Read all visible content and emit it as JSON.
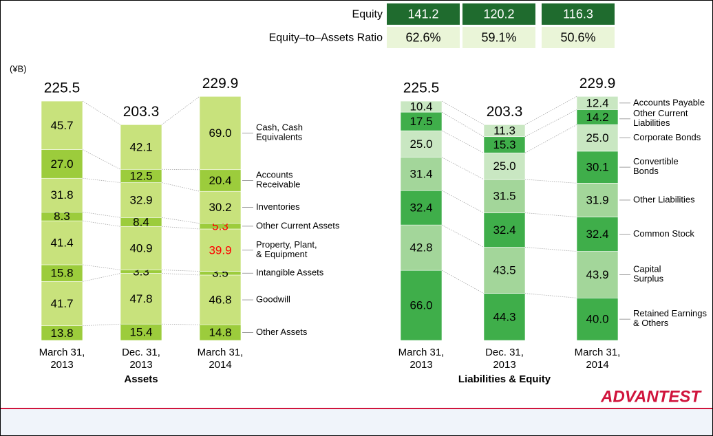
{
  "unit": "(¥B)",
  "logo": "ADVANTEST",
  "table": {
    "rows": [
      {
        "label": "Equity",
        "cells": [
          "141.2",
          "120.2",
          "116.3"
        ]
      },
      {
        "label": "Equity–to–Assets Ratio",
        "cells": [
          "62.6%",
          "59.1%",
          "50.6%"
        ]
      }
    ]
  },
  "chart_data": [
    {
      "type": "bar",
      "stacked": true,
      "title": "Assets",
      "categories": [
        "March 31,\n2013",
        "Dec. 31,\n2013",
        "March 31,\n2014"
      ],
      "totals": [
        225.5,
        203.3,
        229.9
      ],
      "series": [
        {
          "name": "Cash, Cash\nEquivalents",
          "color": "#c8e27c",
          "values": [
            45.7,
            42.1,
            69.0
          ],
          "value_labels": [
            "45.7",
            "42.1",
            "69.0"
          ]
        },
        {
          "name": "Accounts\nReceivable",
          "color": "#9ccc3c",
          "values": [
            27.0,
            12.5,
            20.4
          ],
          "value_labels": [
            "27.0",
            "12.5",
            "20.4"
          ]
        },
        {
          "name": "Inventories",
          "color": "#c8e27c",
          "values": [
            31.8,
            32.9,
            30.2
          ],
          "value_labels": [
            "31.8",
            "32.9",
            "30.2"
          ]
        },
        {
          "name": "Other Current Assets",
          "color": "#9ccc3c",
          "values": [
            8.3,
            8.4,
            5.3
          ],
          "value_labels": [
            "8.3",
            "8.4",
            "5.3"
          ],
          "value_label_colors": [
            "#000000",
            "#000000",
            "#ff0000"
          ]
        },
        {
          "name": "Property, Plant,\n& Equipment",
          "color": "#c8e27c",
          "values": [
            41.4,
            40.9,
            39.9
          ],
          "value_labels": [
            "41.4",
            "40.9",
            "39.9"
          ],
          "value_label_colors": [
            "#000000",
            "#000000",
            "#ff0000"
          ]
        },
        {
          "name": "Intangible Assets",
          "color": "#9ccc3c",
          "values": [
            15.8,
            3.3,
            3.5
          ],
          "value_labels": [
            "15.8",
            "3.3",
            "3.5"
          ]
        },
        {
          "name": "Goodwill",
          "color": "#c8e27c",
          "values": [
            41.7,
            47.8,
            46.8
          ],
          "value_labels": [
            "41.7",
            "47.8",
            "46.8"
          ]
        },
        {
          "name": "Other Assets",
          "color": "#9ccc3c",
          "values": [
            13.8,
            15.4,
            14.8
          ],
          "value_labels": [
            "13.8",
            "15.4",
            "14.8"
          ]
        }
      ]
    },
    {
      "type": "bar",
      "stacked": true,
      "title": "Liabilities & Equity",
      "categories": [
        "March 31,\n2013",
        "Dec. 31,\n2013",
        "March 31,\n2014"
      ],
      "totals": [
        225.5,
        203.3,
        229.9
      ],
      "series": [
        {
          "name": "Accounts Payable",
          "color": "#c9e7c2",
          "values": [
            10.4,
            11.3,
            12.4
          ],
          "value_labels": [
            "10.4",
            "11.3",
            "12.4"
          ]
        },
        {
          "name": "Other Current\nLiabilities",
          "color": "#3fae4a",
          "values": [
            17.5,
            15.3,
            14.2
          ],
          "value_labels": [
            "17.5",
            "15.3",
            "14.2"
          ]
        },
        {
          "name": "Corporate Bonds",
          "color": "#c9e7c2",
          "values": [
            25.0,
            25.0,
            25.0
          ],
          "value_labels": [
            "25.0",
            "25.0",
            "25.0"
          ]
        },
        {
          "name": "Convertible\nBonds",
          "color": "#3fae4a",
          "values": [
            null,
            null,
            30.1
          ],
          "value_labels": [
            null,
            null,
            "30.1"
          ]
        },
        {
          "name": "Other Liabilities",
          "color": "#a3d69a",
          "values": [
            31.4,
            31.5,
            31.9
          ],
          "value_labels": [
            "31.4",
            "31.5",
            "31.9"
          ]
        },
        {
          "name": "Common Stock",
          "color": "#3fae4a",
          "values": [
            32.4,
            32.4,
            32.4
          ],
          "value_labels": [
            "32.4",
            "32.4",
            "32.4"
          ]
        },
        {
          "name": "Capital\nSurplus",
          "color": "#a3d69a",
          "values": [
            42.8,
            43.5,
            43.9
          ],
          "value_labels": [
            "42.8",
            "43.5",
            "43.9"
          ]
        },
        {
          "name": "Retained Earnings\n& Others",
          "color": "#3fae4a",
          "values": [
            66.0,
            44.3,
            40.0
          ],
          "value_labels": [
            "66.0",
            "44.3",
            "40.0"
          ]
        }
      ]
    }
  ]
}
